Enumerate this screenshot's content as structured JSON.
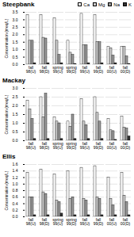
{
  "chart_data": [
    {
      "type": "bar",
      "title": "Steepbank",
      "y_label": "Concentration (meq/L)",
      "categories": [
        "fall\n98(U)",
        "fall\n98(D)",
        "spring\n99(U)",
        "spring\n99(D)",
        "fall\n99(U)",
        "fall\n99(D)",
        "fall\n00(U)",
        "fall\n00(D)"
      ],
      "series": [
        {
          "name": "Ca",
          "color": "#ffffff",
          "values": [
            3.3,
            3.3,
            3.1,
            1.6,
            3.4,
            3.3,
            1.2,
            1.2
          ]
        },
        {
          "name": "Mg",
          "color": "#cccccc",
          "values": [
            1.6,
            1.8,
            1.6,
            0.8,
            1.3,
            1.5,
            1.1,
            1.2
          ]
        },
        {
          "name": "Na",
          "color": "#999999",
          "values": [
            1.6,
            1.75,
            0.65,
            0.65,
            1.3,
            1.5,
            0.6,
            0.55
          ]
        },
        {
          "name": "K",
          "color": "#333333",
          "values": [
            0.1,
            0.1,
            0.1,
            0.05,
            0.1,
            0.1,
            0.1,
            0.05
          ]
        }
      ],
      "ylim": [
        0,
        3.5
      ],
      "yticks": [
        {
          "value": 0,
          "label": "0.0"
        },
        0.5,
        {
          "value": 1,
          "label": "1.0"
        },
        1.5,
        {
          "value": 2,
          "label": "2.0"
        },
        2.5,
        {
          "value": 3,
          "label": "3.0"
        },
        3.5
      ],
      "grid": true,
      "legend": "upper right"
    },
    {
      "type": "bar",
      "title": "Mackay",
      "y_label": "Concentration (meq/L)",
      "categories": [
        "fall\n98(U)",
        "fall\n98(D)",
        "spring\n99(U)",
        "spring\n99(D)",
        "fall\n99(U)",
        "fall\n99(D)",
        "fall\n00(U)",
        "fall\n00(D)"
      ],
      "series": [
        {
          "name": "Ca",
          "color": "#ffffff",
          "values": [
            2.3,
            2.5,
            1.35,
            1.1,
            2.4,
            2.5,
            1.25,
            1.4
          ]
        },
        {
          "name": "Mg",
          "color": "#cccccc",
          "values": [
            1.8,
            1.35,
            1.1,
            0.8,
            1.1,
            1.6,
            0.6,
            0.75
          ]
        },
        {
          "name": "Na",
          "color": "#999999",
          "values": [
            1.25,
            2.7,
            1.0,
            1.5,
            0.9,
            1.1,
            0.55,
            0.7
          ]
        },
        {
          "name": "K",
          "color": "#333333",
          "values": [
            0.1,
            0.1,
            0.1,
            0.1,
            0.1,
            0.1,
            0.05,
            0.25
          ]
        }
      ],
      "ylim": [
        0,
        3.0
      ],
      "yticks": [
        {
          "value": 0,
          "label": "0.0"
        },
        0.5,
        {
          "value": 1,
          "label": "1.0"
        },
        1.5,
        {
          "value": 2,
          "label": "2.0"
        },
        2.5,
        {
          "value": 3,
          "label": "3.0"
        }
      ],
      "grid": true
    },
    {
      "type": "bar",
      "title": "Ellis",
      "y_label": "Concentration (meq/L)",
      "categories": [
        "fall\n98(U)",
        "fall\n98(D)",
        "spring\n99(U)",
        "spring\n99(D)",
        "fall\n99(U)",
        "fall\n99(D)",
        "fall\n00(U)",
        "fall\n00(D)"
      ],
      "series": [
        {
          "name": "Ca",
          "color": "#ffffff",
          "values": [
            1.35,
            1.45,
            1.3,
            1.4,
            1.5,
            1.55,
            1.2,
            1.35
          ]
        },
        {
          "name": "Mg",
          "color": "#cccccc",
          "values": [
            0.6,
            0.75,
            0.5,
            0.55,
            0.55,
            0.6,
            0.55,
            0.65
          ]
        },
        {
          "name": "Na",
          "color": "#999999",
          "values": [
            0.6,
            0.7,
            0.45,
            0.6,
            0.5,
            0.55,
            0.35,
            0.45
          ]
        },
        {
          "name": "K",
          "color": "#333333",
          "values": [
            0.05,
            0.05,
            0.1,
            0.05,
            0.05,
            0.05,
            0.05,
            0.05
          ]
        }
      ],
      "ylim": [
        0,
        1.6
      ],
      "yticks": [
        {
          "value": 0,
          "label": "0.0"
        },
        0.2,
        0.4,
        0.6,
        0.8,
        {
          "value": 1,
          "label": "1.0"
        },
        1.2,
        1.4,
        1.6
      ],
      "grid": true
    }
  ]
}
